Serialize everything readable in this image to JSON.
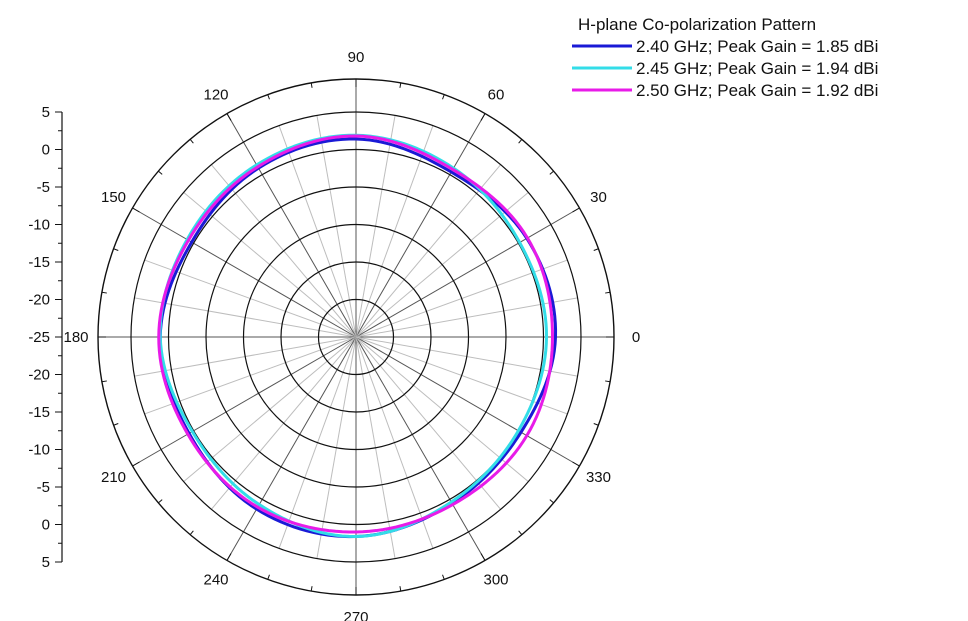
{
  "chart_data": {
    "type": "polar-line",
    "title": "",
    "legend": {
      "title": "H-plane Co-polarization Pattern",
      "placement": "top-right"
    },
    "radial_axis": {
      "min": -25,
      "max": 5,
      "step": 5,
      "tick_labels": [
        "5",
        "0",
        "-5",
        "-10",
        "-15",
        "-20",
        "-25",
        "-20",
        "-15",
        "-10",
        "-5",
        "0",
        "5"
      ]
    },
    "angular_axis": {
      "unit": "deg",
      "ticks": [
        0,
        30,
        60,
        90,
        120,
        150,
        180,
        210,
        240,
        270,
        300,
        330
      ],
      "tick_labels": [
        "0",
        "30",
        "60",
        "90",
        "120",
        "150",
        "180",
        "210",
        "240",
        "270",
        "300",
        "330"
      ],
      "minor_step": 10
    },
    "theta": [
      0,
      30,
      60,
      90,
      120,
      150,
      180,
      210,
      240,
      270,
      300,
      330,
      360
    ],
    "series": [
      {
        "name": "2.40 GHz; Peak Gain = 1.85 dBi",
        "color": "#1a1ad6",
        "values": [
          1.6,
          1.3,
          0.4,
          1.4,
          1.0,
          0.3,
          1.1,
          0.7,
          1.5,
          1.6,
          0.6,
          0.4,
          1.6
        ]
      },
      {
        "name": "2.45 GHz; Peak Gain = 1.94 dBi",
        "color": "#33dde8",
        "values": [
          0.4,
          0.2,
          1.0,
          1.9,
          1.5,
          1.0,
          1.1,
          0.2,
          0.8,
          1.6,
          0.4,
          0.0,
          0.4
        ]
      },
      {
        "name": "2.50 GHz; Peak Gain = 1.92 dBi",
        "color": "#e81be8",
        "values": [
          1.2,
          1.4,
          0.8,
          1.8,
          1.2,
          0.8,
          1.3,
          0.9,
          1.2,
          1.0,
          0.8,
          1.3,
          1.2
        ]
      }
    ],
    "grid": true
  }
}
